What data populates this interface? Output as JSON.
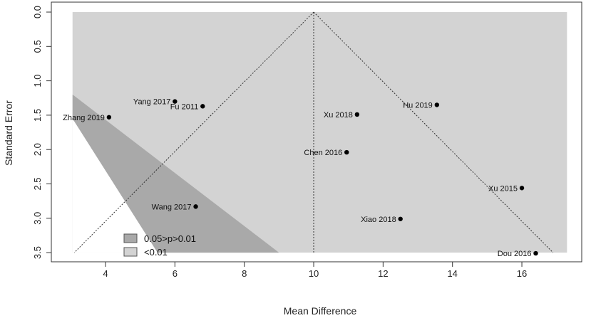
{
  "chart_data": {
    "type": "scatter",
    "title": "",
    "xlabel": "Mean Difference",
    "ylabel": "Standard Error",
    "xlim": [
      2.7,
      17.8
    ],
    "ylim": [
      0,
      3.5
    ],
    "y_reversed": true,
    "x_ticks": [
      4,
      6,
      8,
      10,
      12,
      14,
      16
    ],
    "y_ticks": [
      0.0,
      0.5,
      1.0,
      1.5,
      2.0,
      2.5,
      3.0,
      3.5
    ],
    "y_tick_labels": [
      "0.0",
      "0.5",
      "1.0",
      "1.5",
      "2.0",
      "2.5",
      "3.0",
      "3.5"
    ],
    "pooled_estimate": 10,
    "funnel_bottom_x": [
      3.1,
      16.9
    ],
    "contour_region_x": [
      3.05,
      17.3
    ],
    "significance_band": {
      "top_edge": [
        [
          3.05,
          1.2
        ],
        [
          9.0,
          3.5
        ]
      ],
      "bottom_edge": [
        [
          3.05,
          1.55
        ],
        [
          5.5,
          3.5
        ]
      ]
    },
    "points": [
      {
        "study": "Yang 2017",
        "x": 6.0,
        "se": 1.3
      },
      {
        "study": "Fu 2011",
        "x": 6.8,
        "se": 1.37
      },
      {
        "study": "Zhang 2019",
        "x": 4.1,
        "se": 1.53
      },
      {
        "study": "Xu 2018",
        "x": 11.25,
        "se": 1.49
      },
      {
        "study": "Hu 2019",
        "x": 13.55,
        "se": 1.35
      },
      {
        "study": "Chen 2016",
        "x": 10.95,
        "se": 2.04
      },
      {
        "study": "Xu 2015",
        "x": 16.0,
        "se": 2.56
      },
      {
        "study": "Wang 2017",
        "x": 6.6,
        "se": 2.83
      },
      {
        "study": "Xiao 2018",
        "x": 12.5,
        "se": 3.01
      },
      {
        "study": "Dou 2016",
        "x": 16.4,
        "se": 3.51
      }
    ],
    "legend": {
      "placement": "bottom-left",
      "entries": [
        {
          "label": "0.05>p>0.01",
          "color": "#a9a9a9"
        },
        {
          "label": "<0.01",
          "color": "#d3d3d3"
        }
      ]
    },
    "colors": {
      "region_light": "#d3d3d3",
      "band_dark": "#a9a9a9",
      "background": "#ffffff",
      "points": "#000000"
    }
  }
}
